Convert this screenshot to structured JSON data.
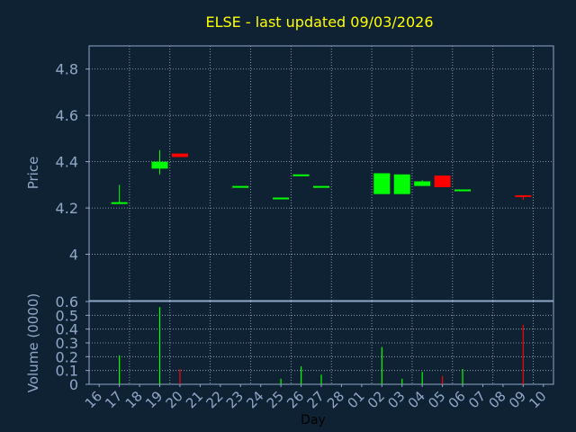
{
  "chart_data": [
    {
      "type": "candlestick",
      "title": "ELSE - last updated 09/03/2026",
      "ylabel": "Price",
      "xlabel": "",
      "ylim": [
        3.8,
        4.9
      ],
      "yticks": [
        4,
        4.2,
        4.4,
        4.6,
        4.8
      ],
      "ytick_labels": [
        "4",
        "4.2",
        "4.4",
        "4.6",
        "4.8"
      ],
      "grid": true,
      "candles": [
        {
          "day": "17",
          "open": 4.225,
          "high": 4.3,
          "low": 4.22,
          "close": 4.225
        },
        {
          "day": "19",
          "open": 4.37,
          "high": 4.45,
          "low": 4.345,
          "close": 4.4
        },
        {
          "day": "20",
          "open": 4.435,
          "high": 4.435,
          "low": 4.42,
          "close": 4.42
        },
        {
          "day": "23",
          "open": 4.295,
          "high": 4.295,
          "low": 4.29,
          "close": 4.295
        },
        {
          "day": "25",
          "open": 4.245,
          "high": 4.245,
          "low": 4.24,
          "close": 4.245
        },
        {
          "day": "26",
          "open": 4.345,
          "high": 4.345,
          "low": 4.34,
          "close": 4.345
        },
        {
          "day": "27",
          "open": 4.295,
          "high": 4.295,
          "low": 4.29,
          "close": 4.295
        },
        {
          "day": "02",
          "open": 4.26,
          "high": 4.35,
          "low": 4.26,
          "close": 4.35
        },
        {
          "day": "03",
          "open": 4.26,
          "high": 4.345,
          "low": 4.26,
          "close": 4.345
        },
        {
          "day": "04",
          "open": 4.295,
          "high": 4.32,
          "low": 4.295,
          "close": 4.315
        },
        {
          "day": "05",
          "open": 4.34,
          "high": 4.34,
          "low": 4.29,
          "close": 4.29
        },
        {
          "day": "06",
          "open": 4.28,
          "high": 4.28,
          "low": 4.275,
          "close": 4.28
        },
        {
          "day": "09",
          "open": 4.255,
          "high": 4.255,
          "low": 4.235,
          "close": 4.25
        }
      ],
      "colors": {
        "up": "#00ff00",
        "down": "#ff0000",
        "title": "#ffff00"
      }
    },
    {
      "type": "bar",
      "ylabel": "Volume (0000)",
      "xlabel": "Day",
      "ylim": [
        0,
        0.6
      ],
      "yticks": [
        0,
        0.1,
        0.2,
        0.3,
        0.4,
        0.5,
        0.6
      ],
      "ytick_labels": [
        "0",
        "0.1",
        "0.2",
        "0.3",
        "0.4",
        "0.5",
        "0.6"
      ],
      "categories": [
        "16",
        "17",
        "18",
        "19",
        "20",
        "21",
        "22",
        "23",
        "24",
        "25",
        "26",
        "27",
        "28",
        "01",
        "02",
        "03",
        "04",
        "05",
        "06",
        "07",
        "08",
        "09",
        "10"
      ],
      "bars": [
        {
          "day": "17",
          "value": 0.21,
          "direction": "up"
        },
        {
          "day": "19",
          "value": 0.56,
          "direction": "up"
        },
        {
          "day": "20",
          "value": 0.11,
          "direction": "down"
        },
        {
          "day": "25",
          "value": 0.04,
          "direction": "up"
        },
        {
          "day": "26",
          "value": 0.13,
          "direction": "up"
        },
        {
          "day": "27",
          "value": 0.07,
          "direction": "up"
        },
        {
          "day": "02",
          "value": 0.27,
          "direction": "up"
        },
        {
          "day": "03",
          "value": 0.04,
          "direction": "up"
        },
        {
          "day": "04",
          "value": 0.09,
          "direction": "up"
        },
        {
          "day": "05",
          "value": 0.06,
          "direction": "down"
        },
        {
          "day": "06",
          "value": 0.11,
          "direction": "up"
        },
        {
          "day": "09",
          "value": 0.43,
          "direction": "down"
        }
      ]
    }
  ],
  "style": {
    "background": "#0f2233",
    "axis_color": "#8fa8c8",
    "grid_color": "#a0b4c8",
    "label_color": "#8fa8c8"
  }
}
